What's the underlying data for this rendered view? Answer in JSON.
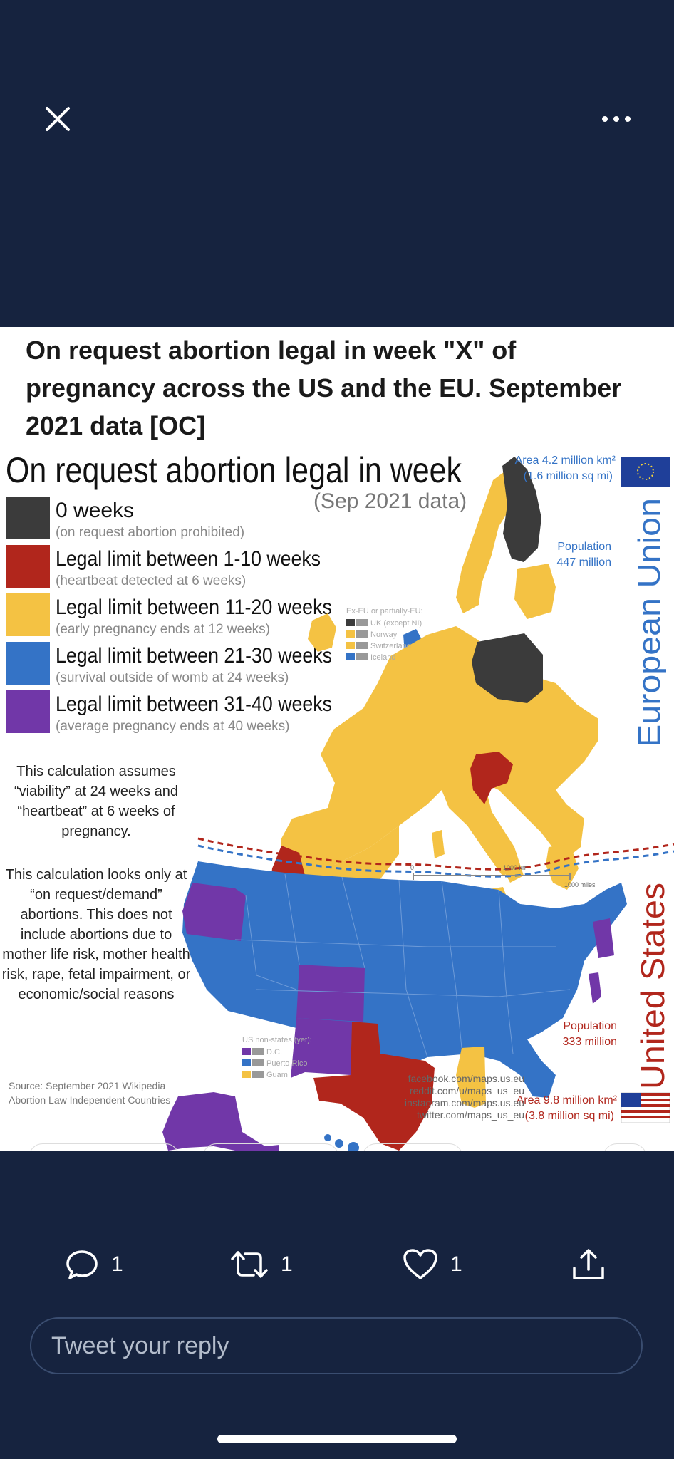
{
  "tweet": {
    "caption": "On request abortion legal in week \"X\" of pregnancy across the US and the EU. September 2021 data [OC]",
    "counts": {
      "replies": "1",
      "retweets": "1",
      "likes": "1"
    },
    "reply_placeholder": "Tweet your reply"
  },
  "infographic": {
    "title": "On request abortion legal in week",
    "subtitle": "(Sep 2021 data)",
    "legend": [
      {
        "label": "0 weeks",
        "note": "(on request abortion prohibited)",
        "color": "#3b3b3b"
      },
      {
        "label": "Legal limit between 1-10 weeks",
        "note": "(heartbeat detected at 6 weeks)",
        "color": "#b1261c"
      },
      {
        "label": "Legal limit between 11-20 weeks",
        "note": "(early pregnancy ends at 12 weeks)",
        "color": "#f4c243"
      },
      {
        "label": "Legal limit between 21-30 weeks",
        "note": "(survival outside of womb at 24 weeks)",
        "color": "#3473c6"
      },
      {
        "label": "Legal limit between 31-40 weeks",
        "note": "(average pregnancy ends at 40 weeks)",
        "color": "#7137a8"
      }
    ],
    "note1": [
      "This calculation assumes",
      "“viability” at 24 weeks and",
      "“heartbeat” at 6 weeks of",
      "pregnancy."
    ],
    "note2": [
      "This calculation looks only at",
      "“on request/demand”",
      "abortions. This does not",
      "include abortions due to",
      "mother life risk, mother health",
      "risk, rape, fetal impairment, or",
      "economic/social reasons"
    ],
    "source": [
      "Source: September 2021 Wikipedia",
      "Abortion Law Independent Countries"
    ],
    "eu": {
      "label": "European Union",
      "area": [
        "Area 4.2 million km²",
        "(1.6 million sq mi)"
      ],
      "population": [
        "Population",
        "447 million"
      ]
    },
    "us": {
      "label": "United States",
      "area": [
        "Area 9.8 million km²",
        "(3.8 million sq mi)"
      ],
      "population": [
        "Population",
        "333 million"
      ]
    },
    "ex_eu": {
      "title": "Ex-EU or partially-EU:",
      "items": [
        "UK (except NI)",
        "Norway",
        "Switzerland",
        "Iceland"
      ]
    },
    "us_non_states": {
      "title": "US non-states (yet):",
      "items": [
        "D.C.",
        "Puerto Rico",
        "Guam"
      ]
    },
    "scale": {
      "zero": "0",
      "km": "1000 km",
      "miles": "1000 miles"
    },
    "links": [
      "facebook.com/maps.us.eu",
      "reddit.com/u/maps_us_eu",
      "instagram.com/maps.us.eu",
      "twitter.com/maps_us_eu"
    ]
  },
  "colors": {
    "background": "#16233f",
    "eu_blue": "#3473c6",
    "us_red": "#b1261c"
  },
  "icons": [
    "close-icon",
    "more-icon",
    "reply-icon",
    "retweet-icon",
    "like-icon",
    "share-icon",
    "eu-flag-icon",
    "us-flag-icon"
  ]
}
